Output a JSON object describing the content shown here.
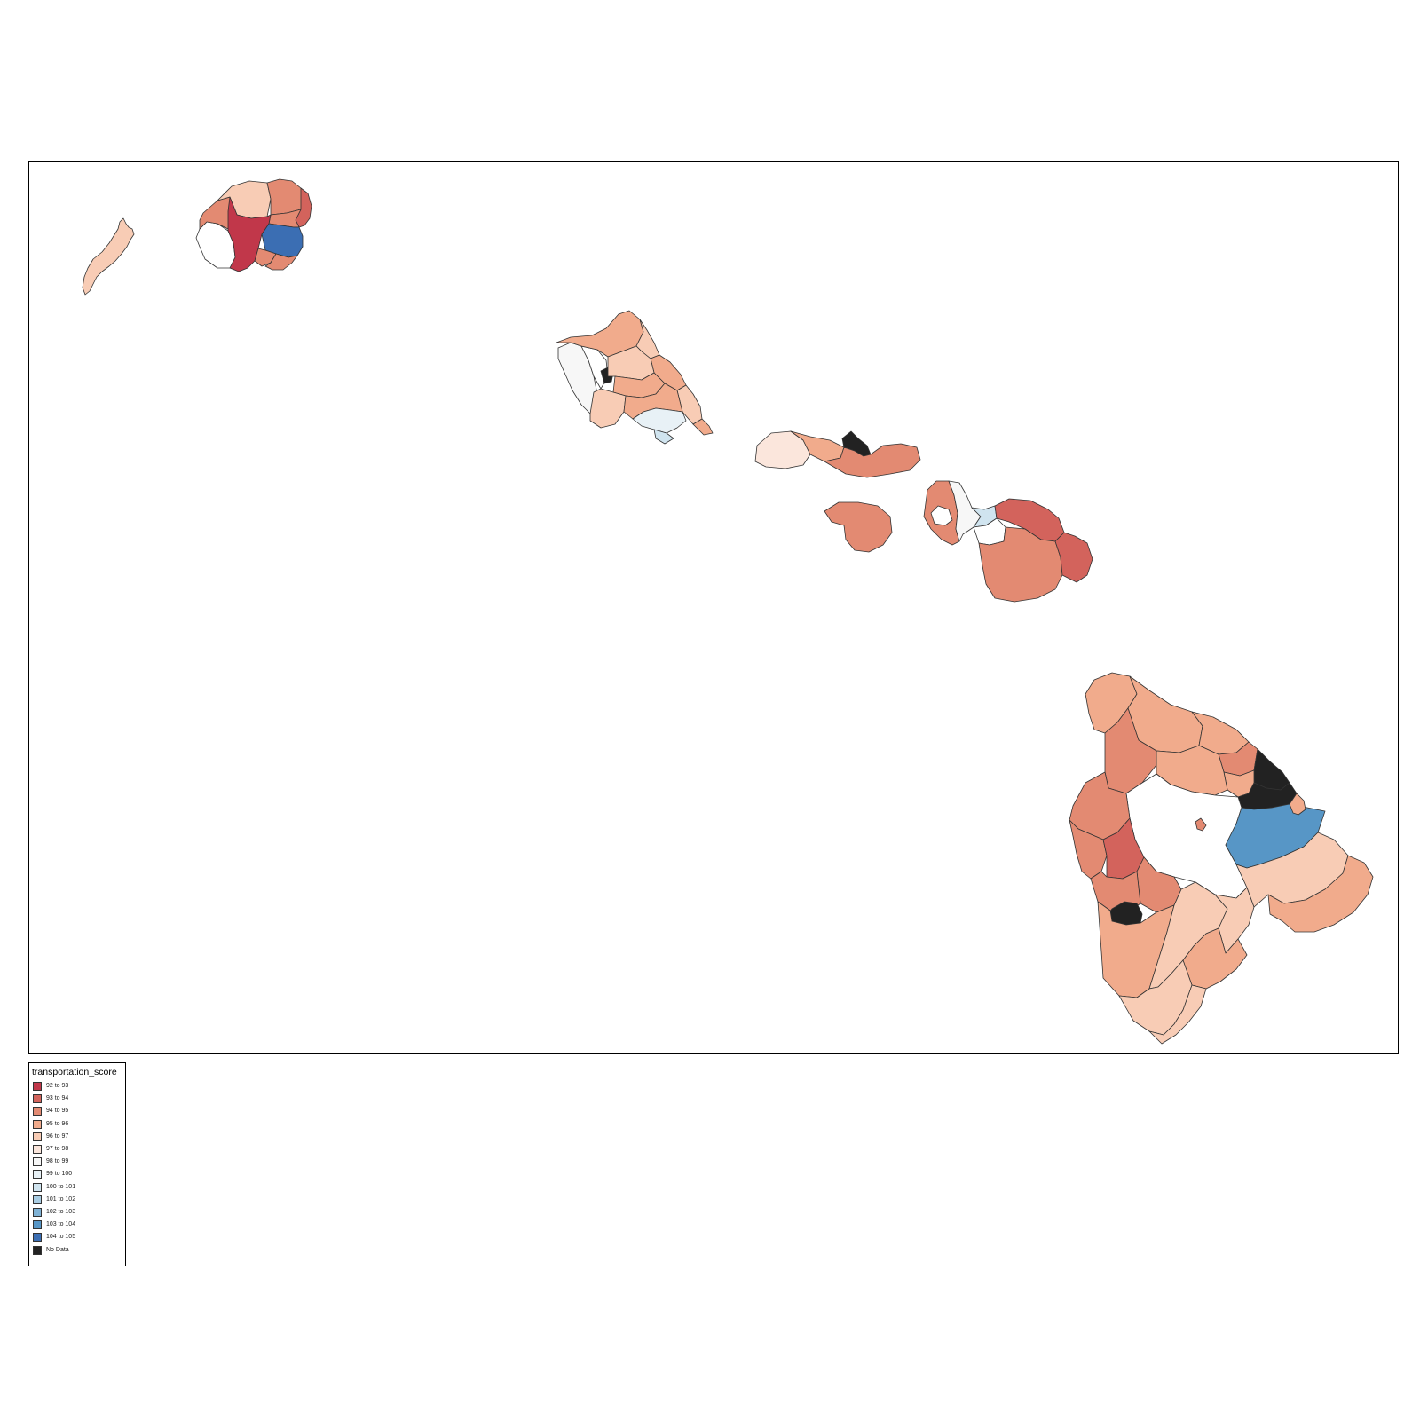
{
  "legend": {
    "title": "transportation_score",
    "items": [
      {
        "label": "92 to 93",
        "color": "#c1374a"
      },
      {
        "label": "93 to 94",
        "color": "#d3635c"
      },
      {
        "label": "94 to 95",
        "color": "#e38a72"
      },
      {
        "label": "95 to 96",
        "color": "#f1ab8c"
      },
      {
        "label": "96 to 97",
        "color": "#f8ccb5"
      },
      {
        "label": "97 to 98",
        "color": "#fbe6dc"
      },
      {
        "label": "98 to 99",
        "color": "#f7f7f7"
      },
      {
        "label": "99 to 100",
        "color": "#e8f1f6"
      },
      {
        "label": "100 to 101",
        "color": "#d0e4ef"
      },
      {
        "label": "101 to 102",
        "color": "#a9cde3"
      },
      {
        "label": "102 to 103",
        "color": "#7fb2d5"
      },
      {
        "label": "103 to 104",
        "color": "#5796c6"
      },
      {
        "label": "104 to 105",
        "color": "#3b6eb3"
      },
      {
        "label": "No Data",
        "color": "#222222"
      }
    ]
  }
}
